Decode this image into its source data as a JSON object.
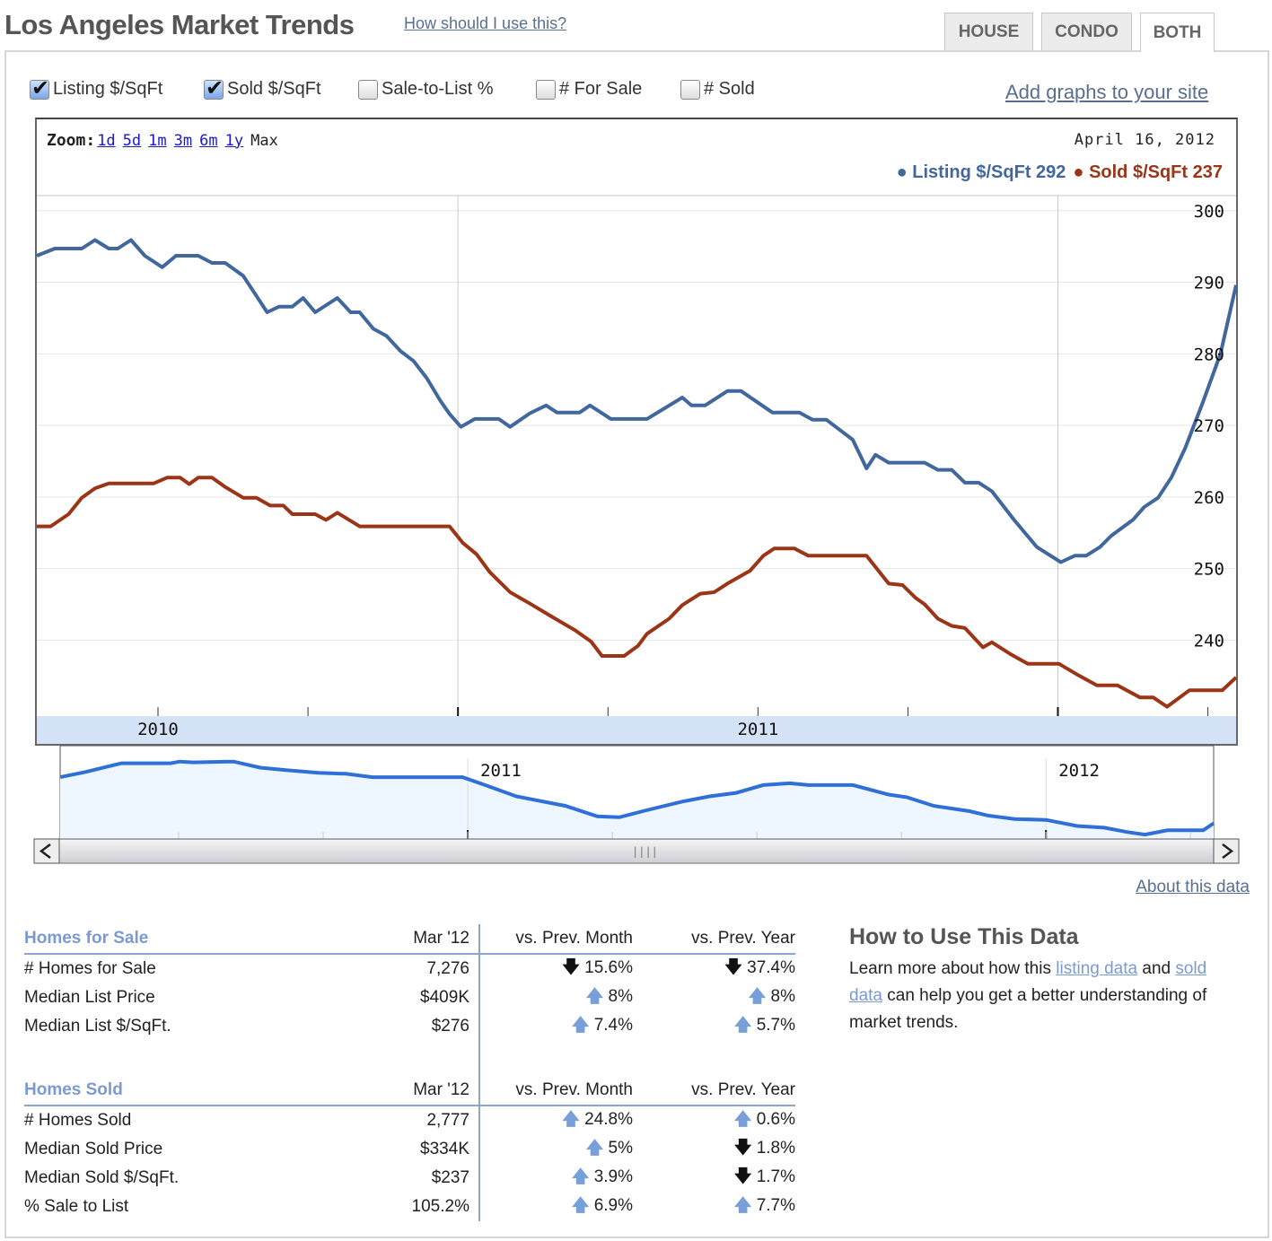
{
  "header": {
    "title": "Los Angeles Market Trends",
    "help_link": "How should I use this?",
    "tabs": [
      {
        "label": "HOUSE",
        "active": false
      },
      {
        "label": "CONDO",
        "active": false
      },
      {
        "label": "BOTH",
        "active": true
      }
    ]
  },
  "toggles": [
    {
      "label": "Listing $/SqFt",
      "checked": true
    },
    {
      "label": "Sold $/SqFt",
      "checked": true
    },
    {
      "label": "Sale-to-List %",
      "checked": false
    },
    {
      "label": "# For Sale",
      "checked": false
    },
    {
      "label": "# Sold",
      "checked": false
    }
  ],
  "add_graphs_link": "Add graphs to your site",
  "chart": {
    "zoom_label": "Zoom:",
    "zoom_links": [
      "1d",
      "5d",
      "1m",
      "3m",
      "6m",
      "1y"
    ],
    "zoom_max": "Max",
    "date": "April 16, 2012",
    "legend": [
      {
        "label": "Listing $/SqFt 292",
        "color": "#41679d"
      },
      {
        "label": "Sold $/SqFt 237",
        "color": "#9c3416"
      }
    ]
  },
  "chart_data": {
    "type": "line",
    "grid": true,
    "xlim": [
      2009.798,
      2011.797
    ],
    "ylim": [
      229.4,
      302.1
    ],
    "yticks": [
      240,
      250,
      260,
      270,
      280,
      290,
      300
    ],
    "xtick_labels": [
      {
        "x": 2010,
        "label": "2010"
      },
      {
        "x": 2011,
        "label": "2011"
      }
    ],
    "series": [
      {
        "name": "Listing $/SqFt",
        "color": "#41679d",
        "points": [
          [
            2009.798,
            293.7
          ],
          [
            2009.828,
            294.7
          ],
          [
            2009.873,
            294.7
          ],
          [
            2009.895,
            295.9
          ],
          [
            2009.918,
            294.7
          ],
          [
            2009.933,
            294.7
          ],
          [
            2009.955,
            295.9
          ],
          [
            2009.978,
            293.7
          ],
          [
            2010.007,
            292.1
          ],
          [
            2010.03,
            293.7
          ],
          [
            2010.067,
            293.7
          ],
          [
            2010.09,
            292.7
          ],
          [
            2010.112,
            292.7
          ],
          [
            2010.142,
            290.9
          ],
          [
            2010.164,
            288.1
          ],
          [
            2010.182,
            285.8
          ],
          [
            2010.202,
            286.6
          ],
          [
            2010.224,
            286.6
          ],
          [
            2010.242,
            287.8
          ],
          [
            2010.262,
            285.8
          ],
          [
            2010.299,
            287.8
          ],
          [
            2010.321,
            285.8
          ],
          [
            2010.336,
            285.8
          ],
          [
            2010.359,
            283.5
          ],
          [
            2010.381,
            282.5
          ],
          [
            2010.404,
            280.4
          ],
          [
            2010.426,
            279.0
          ],
          [
            2010.448,
            276.6
          ],
          [
            2010.471,
            273.4
          ],
          [
            2010.486,
            271.6
          ],
          [
            2010.505,
            269.8
          ],
          [
            2010.528,
            270.9
          ],
          [
            2010.568,
            270.9
          ],
          [
            2010.587,
            269.8
          ],
          [
            2010.62,
            271.7
          ],
          [
            2010.647,
            272.8
          ],
          [
            2010.665,
            271.8
          ],
          [
            2010.703,
            271.8
          ],
          [
            2010.72,
            272.8
          ],
          [
            2010.755,
            270.9
          ],
          [
            2010.815,
            270.9
          ],
          [
            2010.874,
            273.9
          ],
          [
            2010.889,
            272.8
          ],
          [
            2010.912,
            272.8
          ],
          [
            2010.949,
            274.8
          ],
          [
            2010.972,
            274.8
          ],
          [
            2011.024,
            271.8
          ],
          [
            2011.069,
            271.8
          ],
          [
            2011.091,
            270.8
          ],
          [
            2011.114,
            270.8
          ],
          [
            2011.158,
            268.0
          ],
          [
            2011.181,
            264.0
          ],
          [
            2011.196,
            265.9
          ],
          [
            2011.218,
            264.8
          ],
          [
            2011.278,
            264.8
          ],
          [
            2011.3,
            263.8
          ],
          [
            2011.323,
            263.8
          ],
          [
            2011.345,
            262.0
          ],
          [
            2011.368,
            262.0
          ],
          [
            2011.39,
            260.8
          ],
          [
            2011.427,
            256.8
          ],
          [
            2011.465,
            253.0
          ],
          [
            2011.505,
            250.9
          ],
          [
            2011.528,
            251.8
          ],
          [
            2011.547,
            251.8
          ],
          [
            2011.57,
            253.0
          ],
          [
            2011.589,
            254.6
          ],
          [
            2011.625,
            256.8
          ],
          [
            2011.644,
            258.6
          ],
          [
            2011.667,
            259.9
          ],
          [
            2011.689,
            262.7
          ],
          [
            2011.712,
            266.8
          ],
          [
            2011.741,
            273.1
          ],
          [
            2011.771,
            280.0
          ],
          [
            2011.797,
            289.6
          ]
        ]
      },
      {
        "name": "Sold $/SqFt",
        "color": "#9c3416",
        "points": [
          [
            2009.798,
            255.9
          ],
          [
            2009.821,
            255.9
          ],
          [
            2009.851,
            257.6
          ],
          [
            2009.873,
            259.9
          ],
          [
            2009.895,
            261.2
          ],
          [
            2009.918,
            261.9
          ],
          [
            2009.993,
            261.9
          ],
          [
            2010.015,
            262.7
          ],
          [
            2010.037,
            262.7
          ],
          [
            2010.052,
            261.8
          ],
          [
            2010.067,
            262.7
          ],
          [
            2010.09,
            262.7
          ],
          [
            2010.112,
            261.4
          ],
          [
            2010.142,
            259.9
          ],
          [
            2010.164,
            259.9
          ],
          [
            2010.187,
            258.8
          ],
          [
            2010.209,
            258.8
          ],
          [
            2010.224,
            257.6
          ],
          [
            2010.262,
            257.6
          ],
          [
            2010.28,
            256.8
          ],
          [
            2010.299,
            257.8
          ],
          [
            2010.336,
            255.9
          ],
          [
            2010.486,
            255.9
          ],
          [
            2010.508,
            253.6
          ],
          [
            2010.531,
            252.0
          ],
          [
            2010.553,
            249.5
          ],
          [
            2010.587,
            246.7
          ],
          [
            2010.62,
            245.1
          ],
          [
            2010.658,
            243.2
          ],
          [
            2010.695,
            241.4
          ],
          [
            2010.722,
            239.8
          ],
          [
            2010.74,
            237.8
          ],
          [
            2010.777,
            237.8
          ],
          [
            2010.8,
            239.2
          ],
          [
            2010.815,
            240.9
          ],
          [
            2010.852,
            243.0
          ],
          [
            2010.874,
            244.9
          ],
          [
            2010.904,
            246.5
          ],
          [
            2010.927,
            246.7
          ],
          [
            2010.949,
            247.9
          ],
          [
            2010.987,
            249.7
          ],
          [
            2011.009,
            251.8
          ],
          [
            2011.027,
            252.8
          ],
          [
            2011.061,
            252.8
          ],
          [
            2011.084,
            251.8
          ],
          [
            2011.181,
            251.8
          ],
          [
            2011.218,
            247.9
          ],
          [
            2011.241,
            247.7
          ],
          [
            2011.263,
            245.9
          ],
          [
            2011.278,
            245.0
          ],
          [
            2011.3,
            243.0
          ],
          [
            2011.323,
            242.0
          ],
          [
            2011.345,
            241.7
          ],
          [
            2011.375,
            239.0
          ],
          [
            2011.39,
            239.7
          ],
          [
            2011.42,
            238.1
          ],
          [
            2011.45,
            236.7
          ],
          [
            2011.502,
            236.7
          ],
          [
            2011.532,
            235.2
          ],
          [
            2011.565,
            233.7
          ],
          [
            2011.599,
            233.7
          ],
          [
            2011.637,
            232.0
          ],
          [
            2011.659,
            232.0
          ],
          [
            2011.682,
            230.7
          ],
          [
            2011.719,
            233.0
          ],
          [
            2011.774,
            233.0
          ],
          [
            2011.797,
            234.8
          ]
        ]
      }
    ],
    "navigator": {
      "color": "#2f6fd8",
      "fill": "#eef6ff",
      "xlim": [
        2010.295,
        2012.29
      ],
      "ylim": [
        0,
        100
      ],
      "xtick_labels": [
        {
          "x": 2011,
          "label": "2011"
        },
        {
          "x": 2012,
          "label": "2012"
        }
      ],
      "points": [
        [
          2010.295,
          71
        ],
        [
          2010.339,
          77
        ],
        [
          2010.401,
          87
        ],
        [
          2010.486,
          87
        ],
        [
          2010.502,
          89
        ],
        [
          2010.525,
          88
        ],
        [
          2010.595,
          89
        ],
        [
          2010.641,
          82
        ],
        [
          2010.688,
          79
        ],
        [
          2010.742,
          76
        ],
        [
          2010.789,
          75
        ],
        [
          2010.835,
          71
        ],
        [
          2010.874,
          71
        ],
        [
          2010.991,
          71
        ],
        [
          2011.03,
          62
        ],
        [
          2011.084,
          49
        ],
        [
          2011.169,
          38
        ],
        [
          2011.224,
          26
        ],
        [
          2011.262,
          25
        ],
        [
          2011.309,
          33
        ],
        [
          2011.371,
          43
        ],
        [
          2011.418,
          49
        ],
        [
          2011.464,
          53
        ],
        [
          2011.511,
          62
        ],
        [
          2011.557,
          64
        ],
        [
          2011.589,
          62
        ],
        [
          2011.666,
          62
        ],
        [
          2011.728,
          51
        ],
        [
          2011.759,
          48
        ],
        [
          2011.806,
          38
        ],
        [
          2011.868,
          32
        ],
        [
          2011.899,
          27
        ],
        [
          2011.946,
          23
        ],
        [
          2012.0,
          22
        ],
        [
          2012.054,
          15
        ],
        [
          2012.101,
          13
        ],
        [
          2012.14,
          8
        ],
        [
          2012.171,
          5
        ],
        [
          2012.21,
          10
        ],
        [
          2012.272,
          10
        ],
        [
          2012.29,
          18
        ]
      ]
    }
  },
  "about_link": "About this data",
  "stats": [
    {
      "title": "Homes for Sale",
      "cols": [
        "Mar '12",
        "vs. Prev. Month",
        "vs. Prev. Year"
      ],
      "rows": [
        {
          "label": "# Homes for Sale",
          "value": "7,276",
          "mom": "15.6%",
          "mom_dir": "down",
          "yoy": "37.4%",
          "yoy_dir": "down"
        },
        {
          "label": "Median List Price",
          "value": "$409K",
          "mom": "8%",
          "mom_dir": "up",
          "yoy": "8%",
          "yoy_dir": "up"
        },
        {
          "label": "Median List $/SqFt.",
          "value": "$276",
          "mom": "7.4%",
          "mom_dir": "up",
          "yoy": "5.7%",
          "yoy_dir": "up"
        }
      ]
    },
    {
      "title": "Homes Sold",
      "cols": [
        "Mar '12",
        "vs. Prev. Month",
        "vs. Prev. Year"
      ],
      "rows": [
        {
          "label": "# Homes Sold",
          "value": "2,777",
          "mom": "24.8%",
          "mom_dir": "up",
          "yoy": "0.6%",
          "yoy_dir": "up"
        },
        {
          "label": "Median Sold Price",
          "value": "$334K",
          "mom": "5%",
          "mom_dir": "up",
          "yoy": "1.8%",
          "yoy_dir": "down"
        },
        {
          "label": "Median Sold $/SqFt.",
          "value": "$237",
          "mom": "3.9%",
          "mom_dir": "up",
          "yoy": "1.7%",
          "yoy_dir": "down"
        },
        {
          "label": "% Sale to List",
          "value": "105.2%",
          "mom": "6.9%",
          "mom_dir": "up",
          "yoy": "7.7%",
          "yoy_dir": "up"
        }
      ]
    }
  ],
  "howto": {
    "title": "How to Use This Data",
    "text1": "Learn more about how this ",
    "link1": "listing data",
    "text2": " and ",
    "link2": "sold data",
    "text3": " can help you get a better understanding of market trends."
  }
}
